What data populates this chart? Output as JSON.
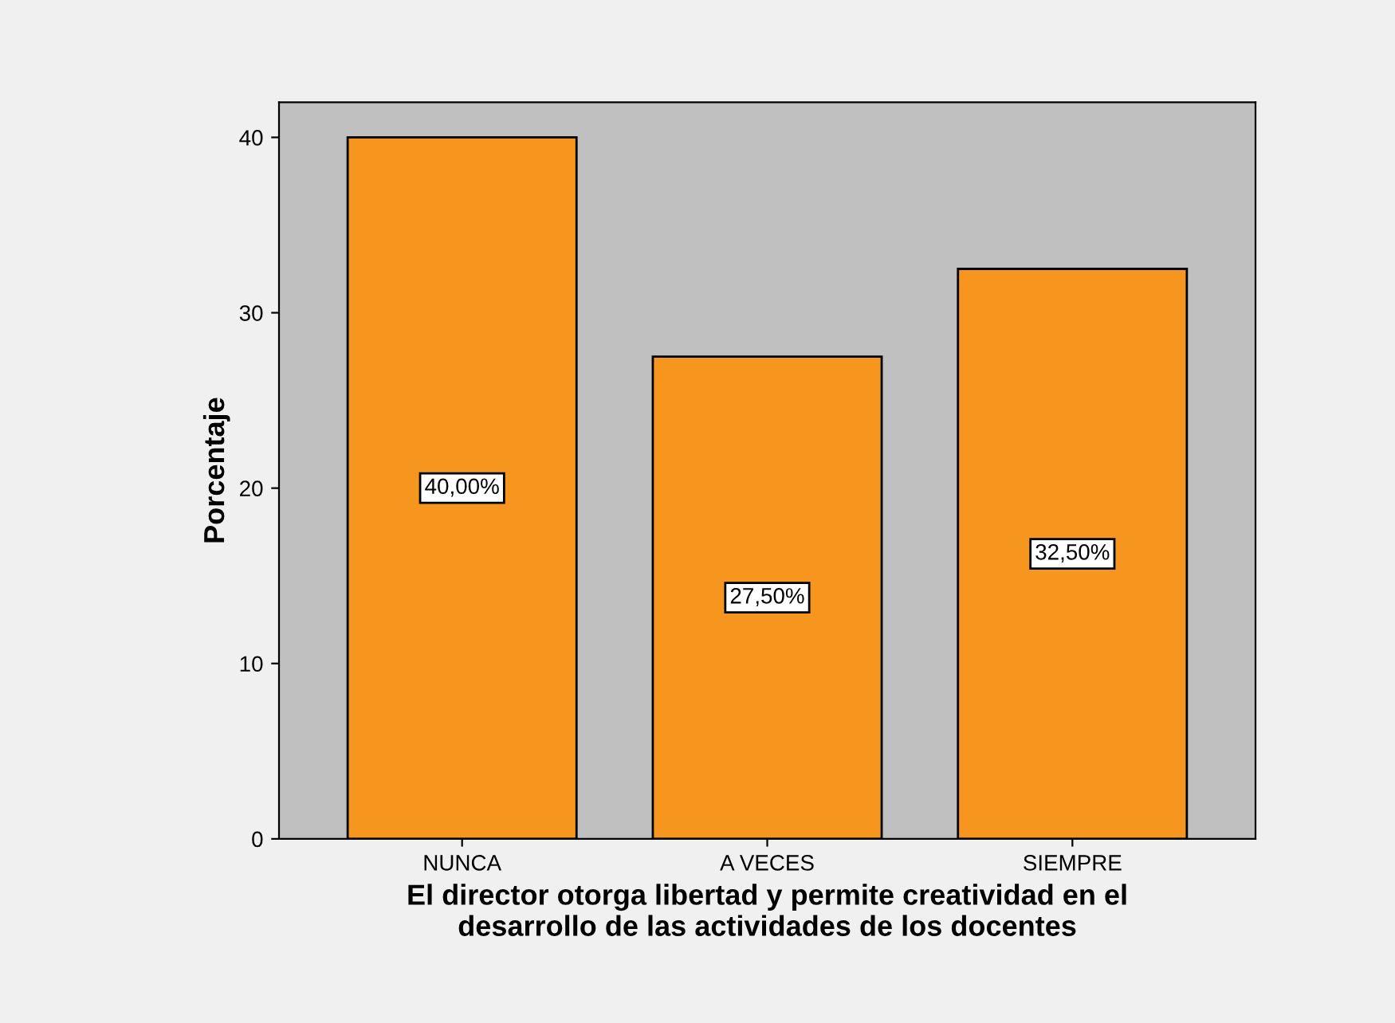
{
  "chart_data": {
    "type": "bar",
    "xlabel": "El director otorga libertad y permite creatividad en el\ndesarrollo de las actividades de los docentes",
    "ylabel": "Porcentaje",
    "categories": [
      "NUNCA",
      "A VECES",
      "SIEMPRE"
    ],
    "values": [
      40.0,
      27.5,
      32.5
    ],
    "value_labels": [
      "40,00%",
      "27,50%",
      "32,50%"
    ],
    "color": "#f7961e",
    "ylim": [
      0,
      42
    ],
    "yticks": [
      0,
      10,
      20,
      30,
      40
    ],
    "grid": false,
    "legend": false
  }
}
